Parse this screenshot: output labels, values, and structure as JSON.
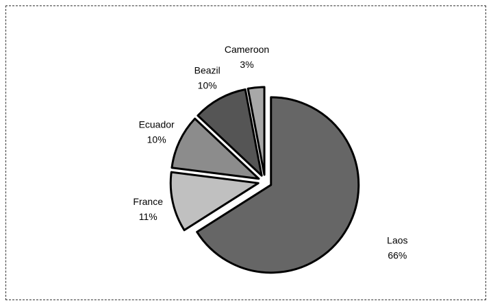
{
  "chart_data": {
    "type": "pie",
    "title": "",
    "slices": [
      {
        "label": "Laos",
        "value": 66,
        "value_label": "66%",
        "color": "#666666"
      },
      {
        "label": "France",
        "value": 11,
        "value_label": "11%",
        "color": "#c0c0c0"
      },
      {
        "label": "Ecuador",
        "value": 10,
        "value_label": "10%",
        "color": "#8c8c8c"
      },
      {
        "label": "Beazil",
        "value": 10,
        "value_label": "10%",
        "color": "#555555"
      },
      {
        "label": "Cameroon",
        "value": 3,
        "value_label": "3%",
        "color": "#a8a8a8"
      }
    ],
    "legend": "none",
    "exploded": true,
    "outline_color": "#000000"
  }
}
